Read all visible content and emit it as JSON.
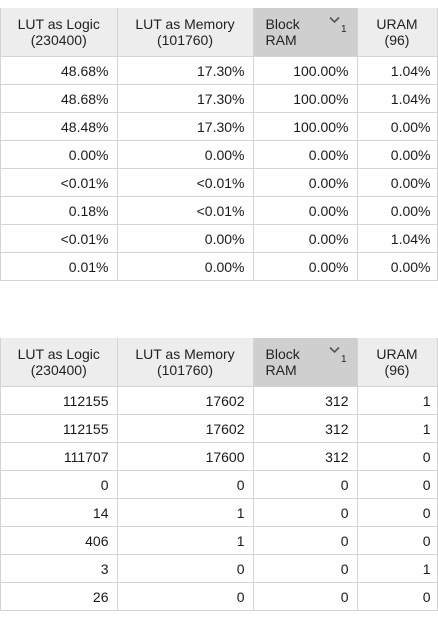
{
  "tables": [
    {
      "headers": [
        {
          "line1": "LUT as Logic",
          "line2": "(230400)"
        },
        {
          "line1": "LUT as Memory",
          "line2": "(101760)"
        },
        {
          "line1": "Block",
          "line2": "RAM",
          "sort_order": "1"
        },
        {
          "line1": "URAM",
          "line2": "(96)"
        }
      ],
      "rows": [
        [
          "48.68%",
          "17.30%",
          "100.00%",
          "1.04%"
        ],
        [
          "48.68%",
          "17.30%",
          "100.00%",
          "1.04%"
        ],
        [
          "48.48%",
          "17.30%",
          "100.00%",
          "0.00%"
        ],
        [
          "0.00%",
          "0.00%",
          "0.00%",
          "0.00%"
        ],
        [
          "<0.01%",
          "<0.01%",
          "0.00%",
          "0.00%"
        ],
        [
          "0.18%",
          "<0.01%",
          "0.00%",
          "0.00%"
        ],
        [
          "<0.01%",
          "0.00%",
          "0.00%",
          "1.04%"
        ],
        [
          "0.01%",
          "0.00%",
          "0.00%",
          "0.00%"
        ]
      ]
    },
    {
      "headers": [
        {
          "line1": "LUT as Logic",
          "line2": "(230400)"
        },
        {
          "line1": "LUT as Memory",
          "line2": "(101760)"
        },
        {
          "line1": "Block",
          "line2": "RAM",
          "sort_order": "1"
        },
        {
          "line1": "URAM",
          "line2": "(96)"
        }
      ],
      "rows": [
        [
          "112155",
          "17602",
          "312",
          "1"
        ],
        [
          "112155",
          "17602",
          "312",
          "1"
        ],
        [
          "111707",
          "17600",
          "312",
          "0"
        ],
        [
          "0",
          "0",
          "0",
          "0"
        ],
        [
          "14",
          "1",
          "0",
          "0"
        ],
        [
          "406",
          "1",
          "0",
          "0"
        ],
        [
          "3",
          "0",
          "0",
          "1"
        ],
        [
          "26",
          "0",
          "0",
          "0"
        ]
      ]
    }
  ],
  "icons": {
    "sort": "chevron-down-icon"
  },
  "colors": {
    "header_bg": "#ededed",
    "sorted_header_bg": "#cfcfcf",
    "grid_line": "#d4d4d4"
  }
}
